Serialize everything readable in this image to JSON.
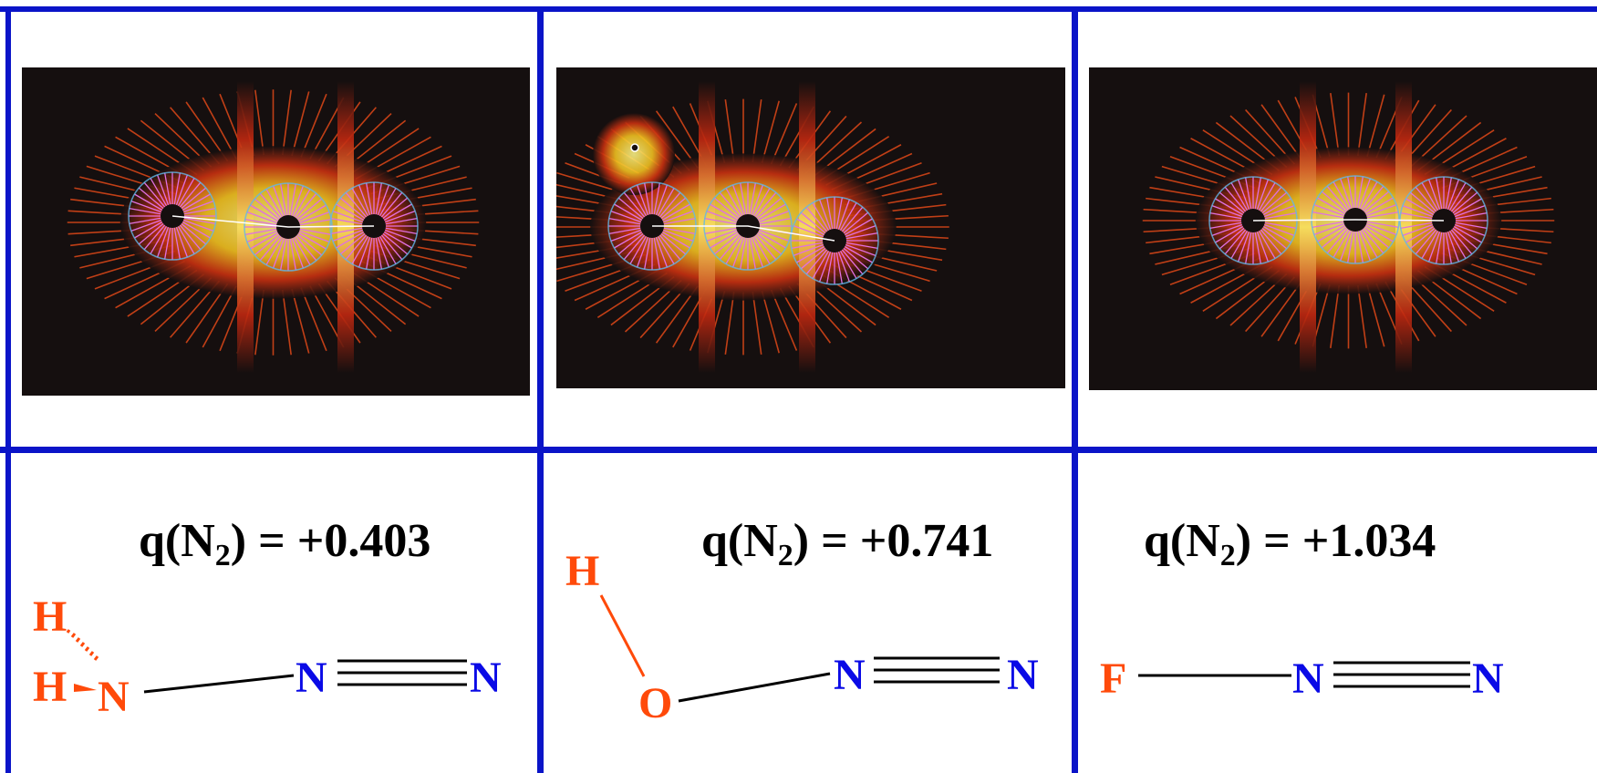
{
  "colors": {
    "frame": "#0a14c8",
    "nitrogen": "#0a0ae6",
    "substituent": "#ff4a0a",
    "bond": "#000000",
    "plot_bg": "#150f0f"
  },
  "panels": [
    {
      "id": "h2n-n2",
      "charge": {
        "prefix": "q(N",
        "subscript": "2",
        "suffix": ") = +0.403"
      },
      "atoms": {
        "h_top": "H",
        "h_bottom": "H",
        "n_sub": "N",
        "n_left": "N",
        "n_right": "N"
      }
    },
    {
      "id": "ho-n2",
      "charge": {
        "prefix": "q(N",
        "subscript": "2",
        "suffix": ") = +0.741"
      },
      "atoms": {
        "h": "H",
        "o": "O",
        "n_left": "N",
        "n_right": "N"
      }
    },
    {
      "id": "f-n2",
      "charge": {
        "prefix": "q(N",
        "subscript": "2",
        "suffix": ") = +1.034"
      },
      "atoms": {
        "f": "F",
        "n_left": "N",
        "n_right": "N"
      }
    }
  ]
}
